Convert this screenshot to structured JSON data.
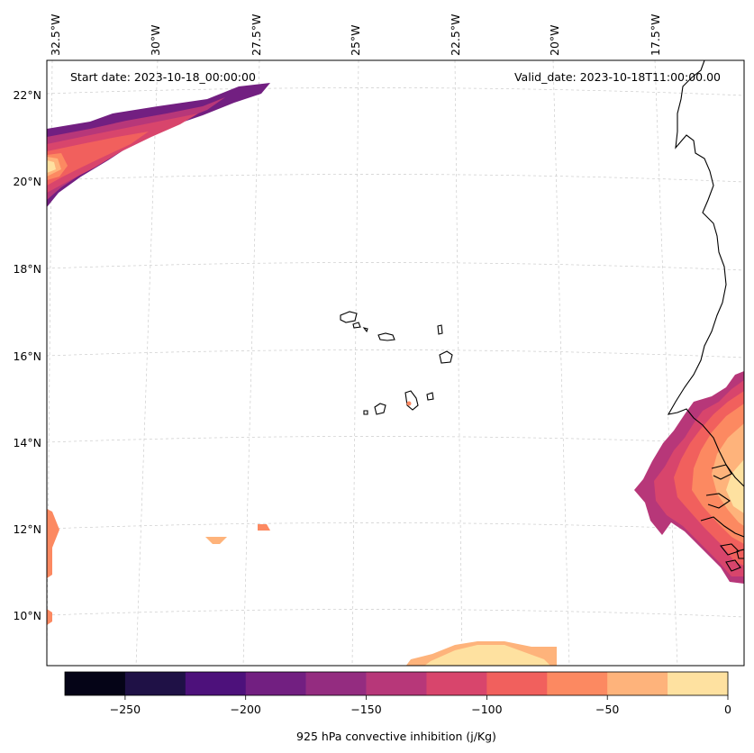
{
  "annotations": {
    "start_date": "Start date: 2023-10-18_00:00:00",
    "valid_date": "Valid_date: 2023-10-18T11:00:00.00"
  },
  "longitude_labels": [
    "32.5°W",
    "30°W",
    "27.5°W",
    "25°W",
    "22.5°W",
    "20°W",
    "17.5°W"
  ],
  "latitude_labels": [
    "22°N",
    "20°N",
    "18°N",
    "16°N",
    "14°N",
    "12°N",
    "10°N"
  ],
  "colorbar": {
    "label": "925 hPa convective inhibition (j/Kg)",
    "tick_labels": [
      "−250",
      "−200",
      "−150",
      "−100",
      "−50",
      "0"
    ],
    "levels": [
      -275,
      -250,
      -225,
      -200,
      -175,
      -150,
      -125,
      -100,
      -75,
      -50,
      -25,
      0
    ],
    "colors": [
      "#050417",
      "#1f1146",
      "#4d117b",
      "#721f81",
      "#942c80",
      "#b73779",
      "#d8456c",
      "#f1605d",
      "#fc8961",
      "#feb37b",
      "#fee1a0"
    ]
  }
}
